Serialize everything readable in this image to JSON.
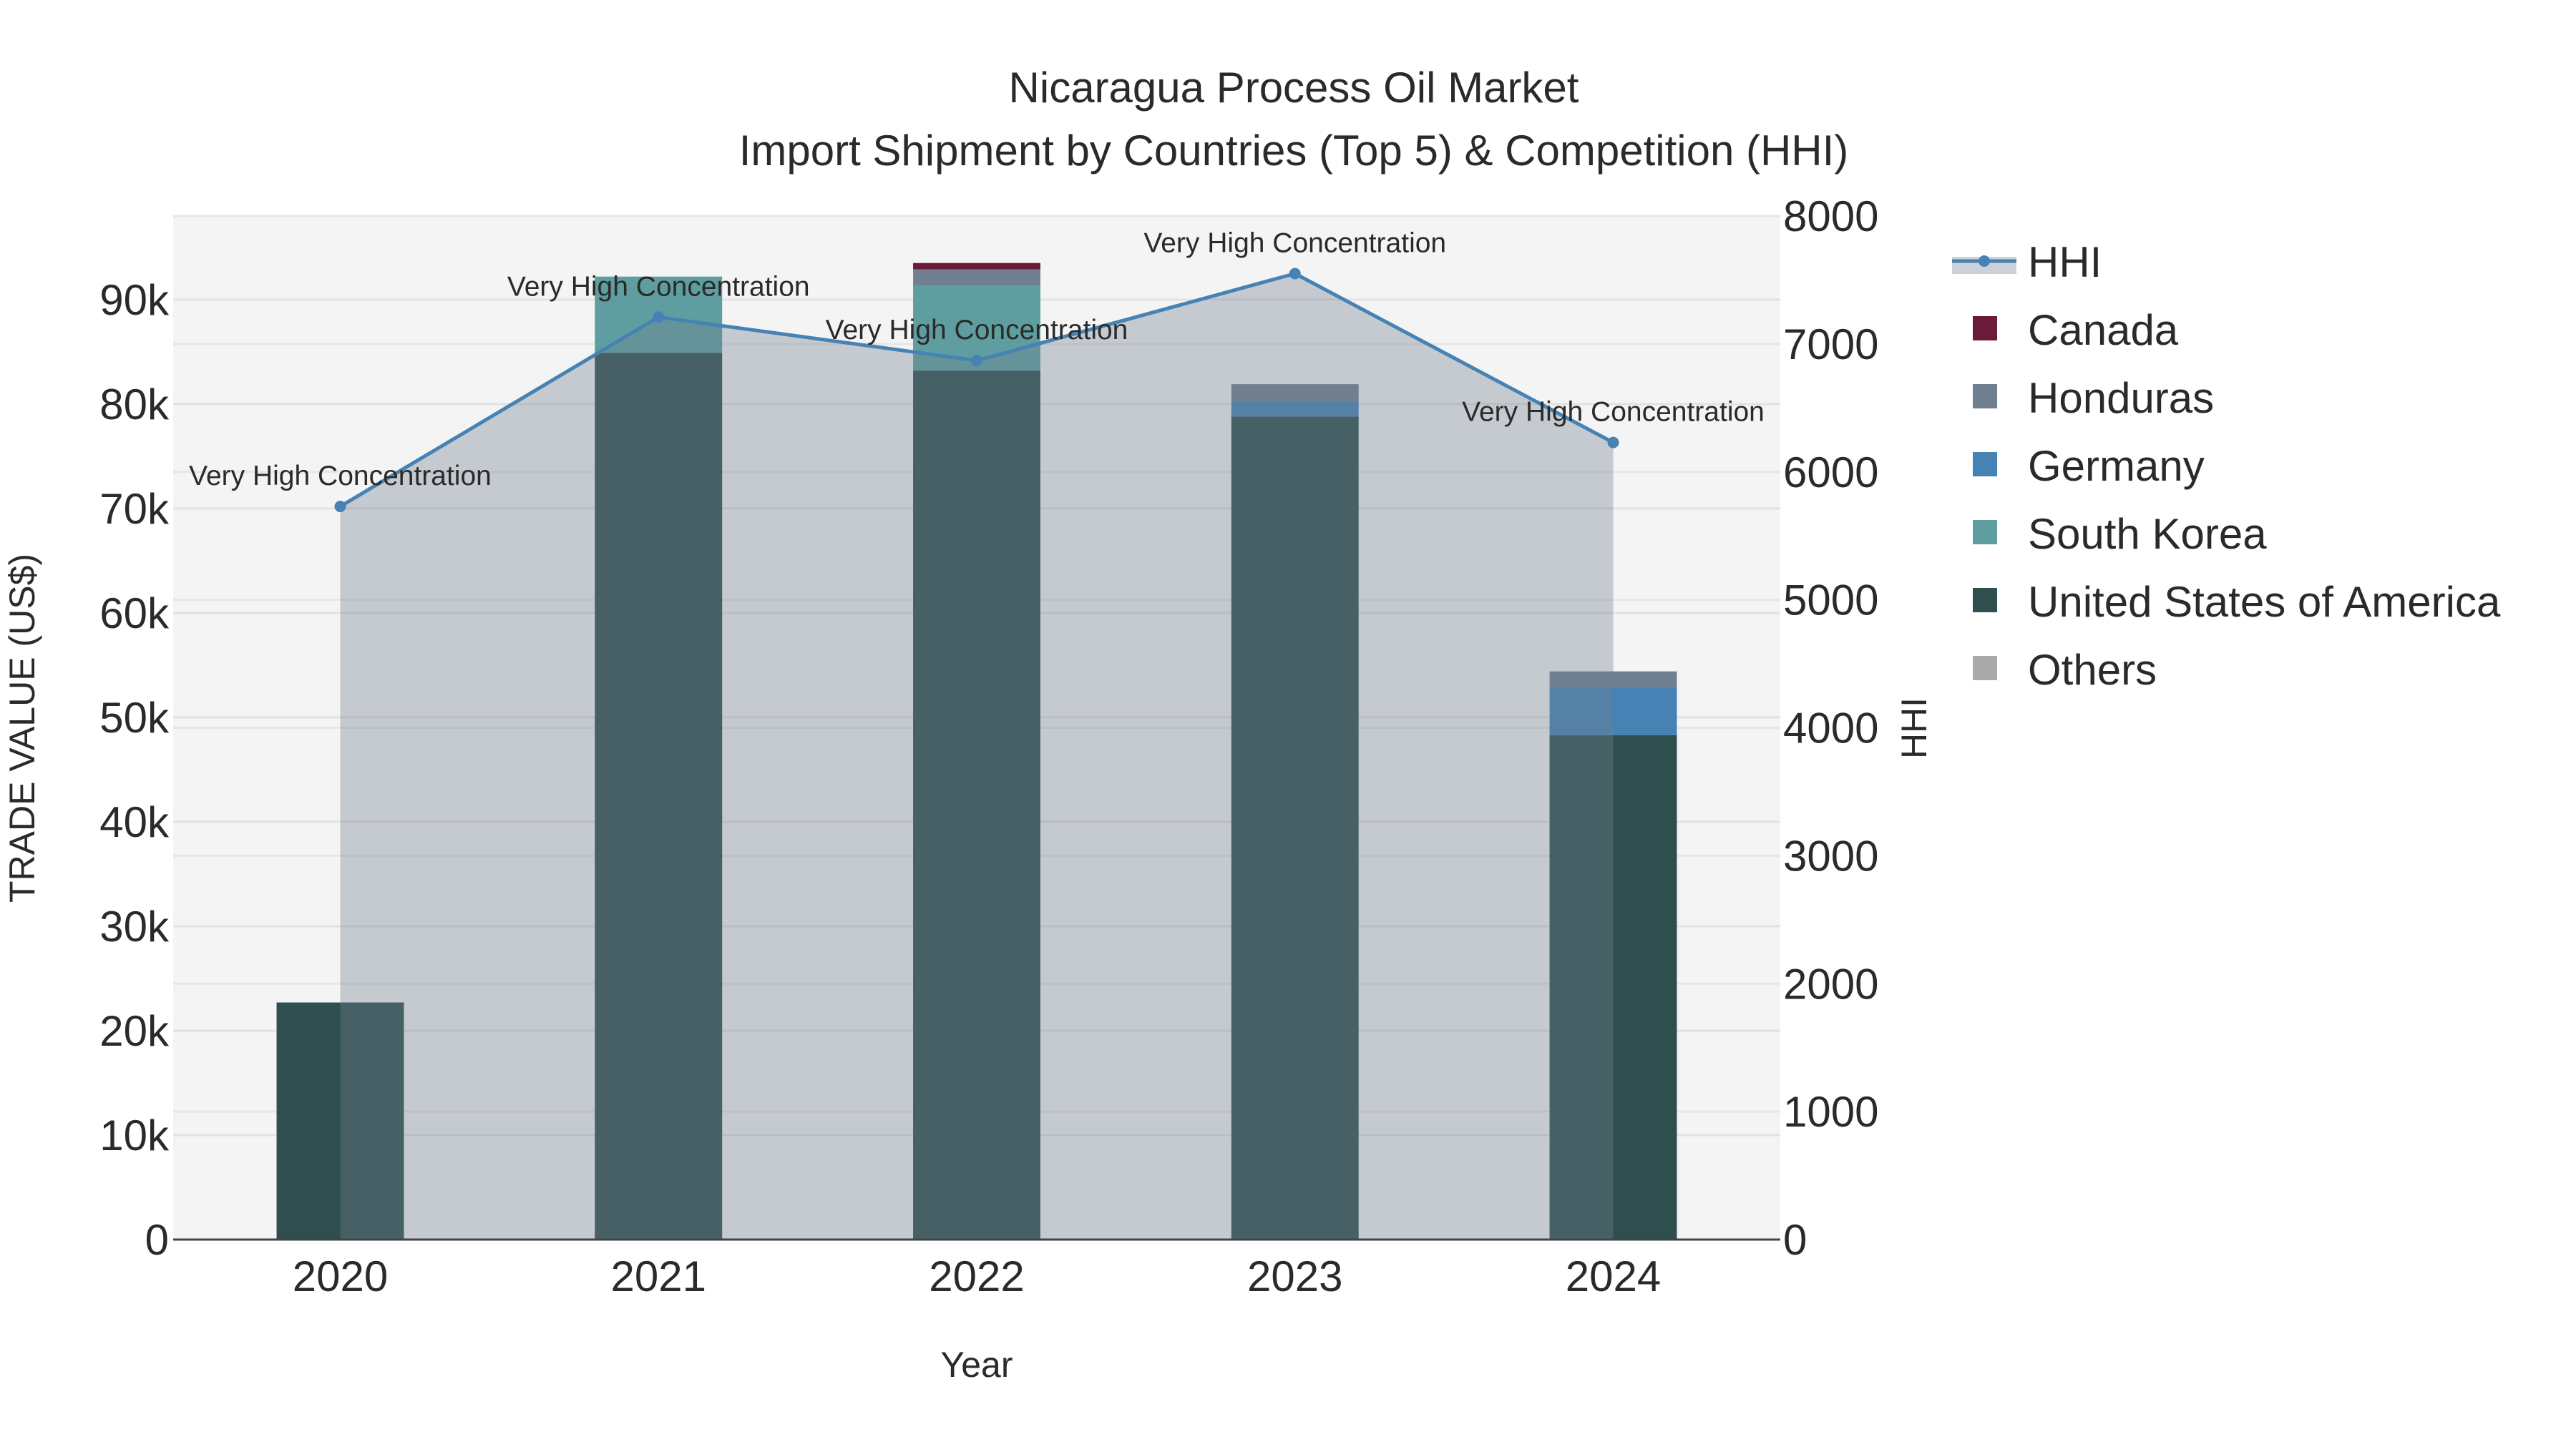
{
  "chart_data": {
    "type": "bar",
    "title": "Nicaragua Process Oil Market",
    "subtitle": "Import Shipment by Countries (Top 5) & Competition (HHI)",
    "xlabel": "Year",
    "ylabel": "TRADE VALUE (US$)",
    "y2label": "HHI",
    "categories": [
      "2020",
      "2021",
      "2022",
      "2023",
      "2024"
    ],
    "ylim": [
      0,
      98000
    ],
    "y2lim": [
      0,
      8000
    ],
    "yticks": [
      0,
      10000,
      20000,
      30000,
      40000,
      50000,
      60000,
      70000,
      80000,
      90000
    ],
    "ytick_labels": [
      "0",
      "10k",
      "20k",
      "30k",
      "40k",
      "50k",
      "60k",
      "70k",
      "80k",
      "90k"
    ],
    "y2ticks": [
      0,
      1000,
      2000,
      3000,
      4000,
      5000,
      6000,
      7000,
      8000
    ],
    "y2tick_labels": [
      "0",
      "1000",
      "2000",
      "3000",
      "4000",
      "5000",
      "6000",
      "7000",
      "8000"
    ],
    "grid": true,
    "legend_position": "right",
    "series": [
      {
        "name": "United States of America",
        "color": "#2F4F4F",
        "values": [
          22700,
          84900,
          83200,
          78800,
          48300
        ]
      },
      {
        "name": "South Korea",
        "color": "#5F9EA0",
        "values": [
          0,
          7300,
          8100,
          0,
          0
        ]
      },
      {
        "name": "Germany",
        "color": "#4682B4",
        "values": [
          0,
          0,
          0,
          1500,
          4500
        ]
      },
      {
        "name": "Honduras",
        "color": "#708090",
        "values": [
          0,
          0,
          1600,
          1600,
          1600
        ]
      },
      {
        "name": "Canada",
        "color": "#6B1A3A",
        "values": [
          0,
          0,
          600,
          0,
          0
        ]
      },
      {
        "name": "Others",
        "color": "#A9A9A9",
        "values": [
          0,
          0,
          0,
          0,
          0
        ]
      }
    ],
    "hhi": {
      "name": "HHI",
      "color": "#4682B4",
      "values": [
        5730,
        7210,
        6870,
        7550,
        6230
      ],
      "annotations": [
        "Very High Concentration",
        "Very High Concentration",
        "Very High Concentration",
        "Very High Concentration",
        "Very High Concentration"
      ]
    },
    "legend": [
      "HHI",
      "Canada",
      "Honduras",
      "Germany",
      "South Korea",
      "United States of America",
      "Others"
    ]
  }
}
